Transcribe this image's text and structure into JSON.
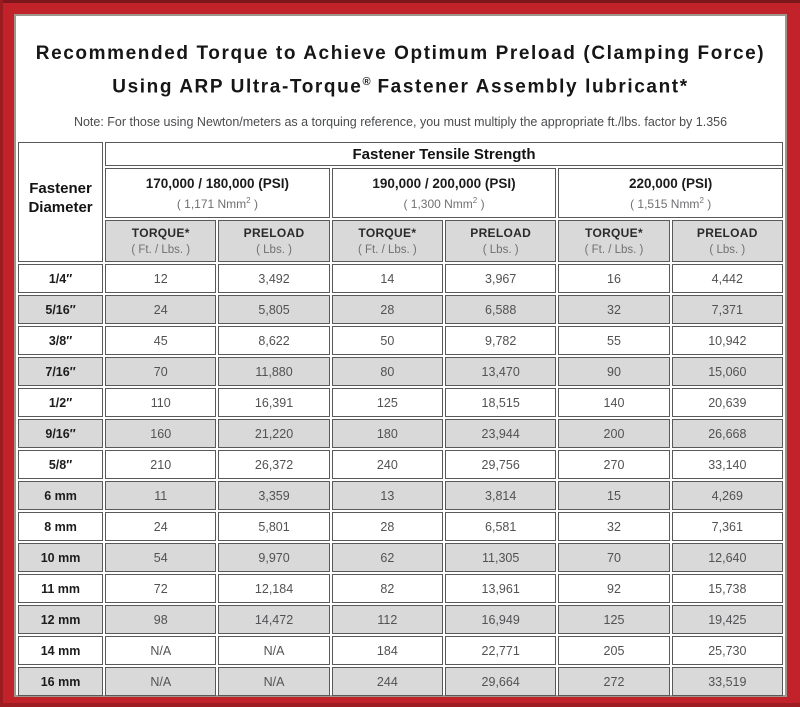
{
  "colors": {
    "frame_red": "#c2222a",
    "frame_dark_top": "#7c171b",
    "frame_dark_bottom": "#9e1d23",
    "panel_border": "#9d968b",
    "cell_border": "#58595b",
    "row_shade": "#d9d9d9"
  },
  "title": {
    "line1": "Recommended Torque to Achieve Optimum Preload (Clamping Force)",
    "line2_pre": "Using ARP Ultra-Torque",
    "line2_sup": "®",
    "line2_post": " Fastener Assembly lubricant*",
    "note": "Note: For those using Newton/meters as a torquing reference, you must multiply the appropriate ft./lbs. factor by 1.356"
  },
  "table": {
    "tensile_header": "Fastener Tensile Strength",
    "diameter_line1": "Fastener",
    "diameter_line2": "Diameter",
    "groups": [
      {
        "psi": "170,000 / 180,000 (PSI)",
        "nmm_pre": "( 1,171 Nmm",
        "nmm_sup": "2",
        "nmm_post": " )"
      },
      {
        "psi": "190,000 / 200,000 (PSI)",
        "nmm_pre": "( 1,300 Nmm",
        "nmm_sup": "2",
        "nmm_post": " )"
      },
      {
        "psi": "220,000 (PSI)",
        "nmm_pre": "( 1,515 Nmm",
        "nmm_sup": "2",
        "nmm_post": " )"
      }
    ],
    "sub": {
      "torque_label": "TORQUE*",
      "torque_unit": "( Ft. / Lbs. )",
      "preload_label": "PRELOAD",
      "preload_unit": "( Lbs. )"
    },
    "rows": [
      {
        "d": "1/4″",
        "v": [
          "12",
          "3,492",
          "14",
          "3,967",
          "16",
          "4,442"
        ]
      },
      {
        "d": "5/16″",
        "v": [
          "24",
          "5,805",
          "28",
          "6,588",
          "32",
          "7,371"
        ]
      },
      {
        "d": "3/8″",
        "v": [
          "45",
          "8,622",
          "50",
          "9,782",
          "55",
          "10,942"
        ]
      },
      {
        "d": "7/16″",
        "v": [
          "70",
          "11,880",
          "80",
          "13,470",
          "90",
          "15,060"
        ]
      },
      {
        "d": "1/2″",
        "v": [
          "110",
          "16,391",
          "125",
          "18,515",
          "140",
          "20,639"
        ]
      },
      {
        "d": "9/16″",
        "v": [
          "160",
          "21,220",
          "180",
          "23,944",
          "200",
          "26,668"
        ]
      },
      {
        "d": "5/8″",
        "v": [
          "210",
          "26,372",
          "240",
          "29,756",
          "270",
          "33,140"
        ]
      },
      {
        "d": "6 mm",
        "v": [
          "11",
          "3,359",
          "13",
          "3,814",
          "15",
          "4,269"
        ]
      },
      {
        "d": "8 mm",
        "v": [
          "24",
          "5,801",
          "28",
          "6,581",
          "32",
          "7,361"
        ]
      },
      {
        "d": "10 mm",
        "v": [
          "54",
          "9,970",
          "62",
          "11,305",
          "70",
          "12,640"
        ]
      },
      {
        "d": "11 mm",
        "v": [
          "72",
          "12,184",
          "82",
          "13,961",
          "92",
          "15,738"
        ]
      },
      {
        "d": "12 mm",
        "v": [
          "98",
          "14,472",
          "112",
          "16,949",
          "125",
          "19,425"
        ]
      },
      {
        "d": "14 mm",
        "v": [
          "N/A",
          "N/A",
          "184",
          "22,771",
          "205",
          "25,730"
        ]
      },
      {
        "d": "16 mm",
        "v": [
          "N/A",
          "N/A",
          "244",
          "29,664",
          "272",
          "33,519"
        ]
      }
    ]
  }
}
